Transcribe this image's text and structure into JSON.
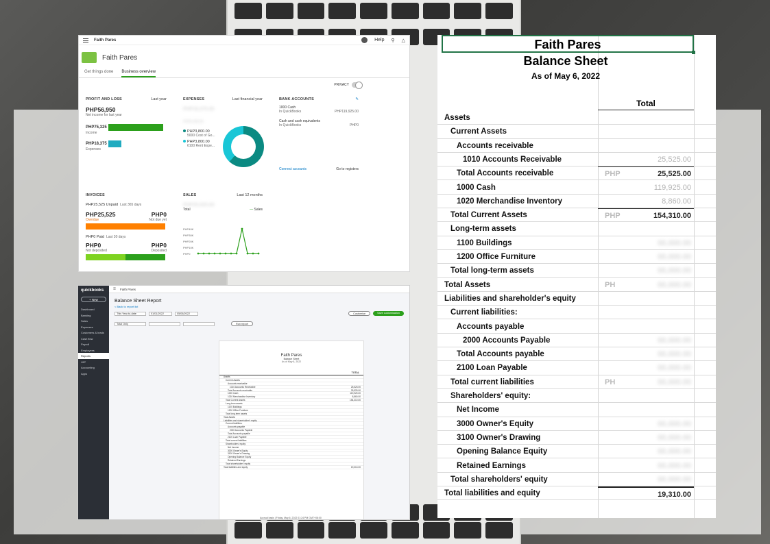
{
  "overview": {
    "topbar_title": "Faith Pares",
    "help_label": "Help",
    "company_name": "Faith Pares",
    "tabs": [
      "Get things done",
      "Business overview"
    ],
    "privacy_label": "PRIVACY",
    "profit_loss": {
      "title": "PROFIT AND LOSS",
      "period": "Last year",
      "net_income": "PHP56,950",
      "net_income_label": "Net income for last year",
      "income": "PHP75,325",
      "income_label": "Income",
      "income_fraction": 1.0,
      "expenses": "PHP18,375",
      "expenses_label": "Expenses",
      "expenses_fraction": 0.24
    },
    "expenses": {
      "title": "EXPENSES",
      "period": "Last financial year",
      "item1_value": "PHP3,800.00",
      "item1_label": "5000 Cost of Go...",
      "item2_value": "PHP3,800.00",
      "item2_label": "6100 Rent Expe..."
    },
    "bank": {
      "title": "BANK ACCOUNTS",
      "acct1": "1000 Cash",
      "acct1_sub": "In QuickBooks",
      "acct1_value": "PHP119,925.00",
      "acct2": "Cash and cash equivalents",
      "acct2_sub": "In QuickBooks",
      "acct2_value": "PHP0",
      "connect": "Connect accounts",
      "goto": "Go to registers"
    },
    "invoices": {
      "title": "INVOICES",
      "unpaid": "PHP25,525 Unpaid",
      "unpaid_period": "Last 365 days",
      "overdue_value": "PHP25,525",
      "overdue_label": "Overdue",
      "not_due_value": "PHP0",
      "not_due_label": "Not due yet",
      "paid": "PHP0 Paid",
      "paid_period": "Last 30 days",
      "not_deposited_value": "PHP0",
      "not_deposited_label": "Not deposited",
      "deposited_value": "PHP0",
      "deposited_label": "Deposited"
    },
    "sales": {
      "title": "SALES",
      "period": "Last 12 months",
      "legend": "Sales",
      "total_label": "Total",
      "y_ticks": [
        "PHP40K",
        "PHP30K",
        "PHP20K",
        "PHP10K",
        "PHP0"
      ]
    }
  },
  "report": {
    "app_name": "quickbooks",
    "new_label": "+ New",
    "company": "Faith Pares",
    "nav": [
      "Dashboard",
      "Banking",
      "Sales",
      "Expenses",
      "Customers & leads",
      "Cash flow",
      "Payroll",
      "Employees",
      "Reports",
      "VAT",
      "Accounting",
      "Apps"
    ],
    "title": "Balance Sheet Report",
    "back_link": "< Back to report list",
    "period": "This Year-to-date",
    "from": "01/01/2022",
    "to": "05/06/2022",
    "display": "Total Only",
    "customize": "Customise",
    "save": "Save customisation",
    "run": "Run report",
    "sheet_company": "Faith Pares",
    "sheet_title": "Balance Sheet",
    "sheet_date": "As of May 6, 2022",
    "sheet_total_header": "TOTAL",
    "footer": "Accrual basis | Friday, May 6, 2022  01:24 PM GMT+08:00"
  },
  "sheet": {
    "company": "Faith Pares",
    "title": "Balance Sheet",
    "date": "As of May 6, 2022",
    "total_header": "Total",
    "rows": [
      {
        "label": "Assets",
        "indent": 0
      },
      {
        "label": "Current Assets",
        "indent": 1
      },
      {
        "label": "Accounts receivable",
        "indent": 2
      },
      {
        "label": "1010 Accounts Receivable",
        "indent": 3,
        "value": "25,525.00"
      },
      {
        "label": "Total Accounts receivable",
        "indent": 2,
        "cur": "PHP",
        "value": "25,525.00",
        "strong": true
      },
      {
        "label": "1000 Cash",
        "indent": 2,
        "value": "119,925.00"
      },
      {
        "label": "1020 Merchandise Inventory",
        "indent": 2,
        "value": "8,860.00"
      },
      {
        "label": "Total Current Assets",
        "indent": 1,
        "cur": "PHP",
        "value": "154,310.00",
        "strong": true
      },
      {
        "label": "Long-term assets",
        "indent": 1
      },
      {
        "label": "1100 Buildings",
        "indent": 2,
        "blur": true
      },
      {
        "label": "1200 Office Furniture",
        "indent": 2,
        "blur": true
      },
      {
        "label": "Total long-term assets",
        "indent": 1,
        "blur": true
      },
      {
        "label": "Total Assets",
        "indent": 0,
        "cur": "PH",
        "blur": true
      },
      {
        "label": "Liabilities and shareholder's equity",
        "indent": 0
      },
      {
        "label": "Current liabilities:",
        "indent": 1
      },
      {
        "label": "Accounts payable",
        "indent": 2
      },
      {
        "label": "2000 Accounts Payable",
        "indent": 3,
        "blur": true
      },
      {
        "label": "Total Accounts payable",
        "indent": 2,
        "blur": true
      },
      {
        "label": "2100 Loan Payable",
        "indent": 2,
        "blur": true
      },
      {
        "label": "Total current liabilities",
        "indent": 1,
        "cur": "PH",
        "blur": true
      },
      {
        "label": "Shareholders' equity:",
        "indent": 1
      },
      {
        "label": "Net Income",
        "indent": 2
      },
      {
        "label": "3000 Owner's Equity",
        "indent": 2,
        "blur": true
      },
      {
        "label": "3100 Owner's Drawing",
        "indent": 2,
        "blur": true
      },
      {
        "label": "Opening Balance Equity",
        "indent": 2,
        "blur": true
      },
      {
        "label": "Retained Earnings",
        "indent": 2,
        "blur": true
      },
      {
        "label": "Total shareholders' equity",
        "indent": 1,
        "blur": true
      },
      {
        "label": "Total liabilities and equity",
        "indent": 0,
        "value": "19,310.00",
        "strong": true
      }
    ]
  }
}
